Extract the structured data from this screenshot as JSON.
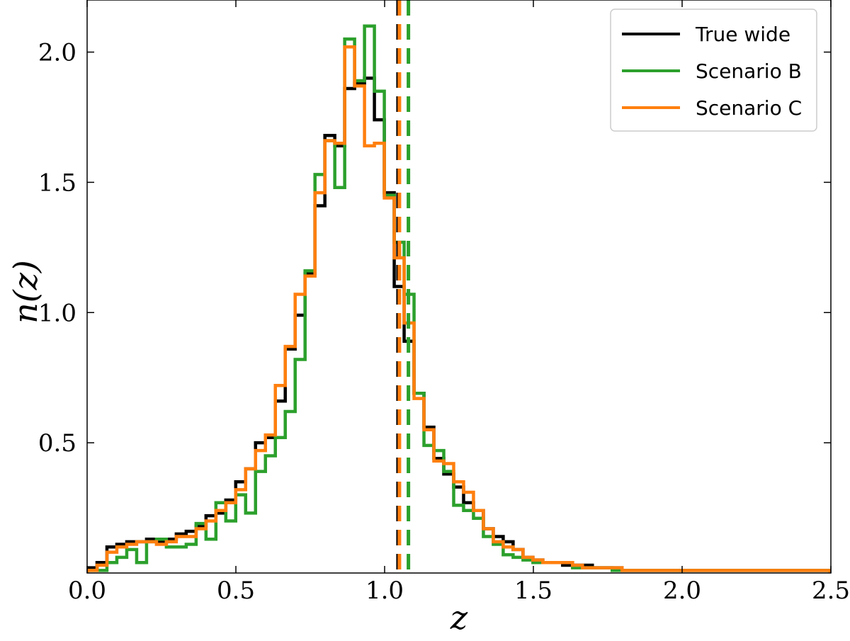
{
  "chart_data": {
    "type": "step-histogram",
    "xlabel": "z",
    "ylabel": "n(z)",
    "xlim": [
      0.0,
      2.5
    ],
    "ylim": [
      0.0,
      2.2
    ],
    "xticks": [
      "0.0",
      "0.5",
      "1.0",
      "1.5",
      "2.0",
      "2.5"
    ],
    "yticks": [
      "0.5",
      "1.0",
      "1.5",
      "2.0"
    ],
    "grid": false,
    "legend_position": "top-right",
    "bin_width": 0.0333,
    "series": [
      {
        "name": "True wide",
        "color": "#000000",
        "mean_z": 1.045,
        "values": [
          0.02,
          0.04,
          0.1,
          0.11,
          0.12,
          0.12,
          0.13,
          0.12,
          0.13,
          0.15,
          0.16,
          0.18,
          0.22,
          0.23,
          0.28,
          0.35,
          0.4,
          0.5,
          0.52,
          0.66,
          0.86,
          0.99,
          1.15,
          1.41,
          1.68,
          1.64,
          1.86,
          1.88,
          1.9,
          1.74,
          1.46,
          1.1,
          0.89,
          0.69,
          0.56,
          0.44,
          0.38,
          0.33,
          0.27,
          0.24,
          0.17,
          0.14,
          0.12,
          0.09,
          0.06,
          0.05,
          0.04,
          0.04,
          0.03,
          0.03,
          0.03,
          0.02,
          0.02,
          0.02,
          0.01,
          0.01,
          0.01,
          0.01,
          0.01,
          0.01,
          0.01,
          0.01,
          0.01,
          0.01,
          0.01,
          0.01,
          0.01,
          0.01,
          0.01,
          0.01,
          0.01,
          0.01,
          0.01,
          0.01,
          0.01
        ]
      },
      {
        "name": "Scenario B",
        "color": "#2ca02c",
        "mean_z": 1.08,
        "values": [
          0.01,
          0.01,
          0.04,
          0.06,
          0.09,
          0.04,
          0.12,
          0.13,
          0.1,
          0.1,
          0.11,
          0.19,
          0.13,
          0.27,
          0.2,
          0.3,
          0.23,
          0.39,
          0.45,
          0.52,
          0.62,
          0.82,
          1.16,
          1.53,
          1.66,
          1.48,
          2.05,
          1.89,
          2.1,
          1.85,
          1.45,
          1.27,
          1.07,
          0.69,
          0.49,
          0.47,
          0.39,
          0.26,
          0.24,
          0.21,
          0.14,
          0.11,
          0.07,
          0.06,
          0.05,
          0.04,
          0.04,
          0.04,
          0.04,
          0.02,
          0.02,
          0.02,
          0.02,
          0.01,
          0.01,
          0.01,
          0.01,
          0.01,
          0.01,
          0.01,
          0.01,
          0.01,
          0.01,
          0.01,
          0.01,
          0.01,
          0.01,
          0.01,
          0.01,
          0.01,
          0.01,
          0.01,
          0.01,
          0.01,
          0.01
        ]
      },
      {
        "name": "Scenario C",
        "color": "#ff7f0e",
        "mean_z": 1.045,
        "values": [
          0.01,
          0.03,
          0.08,
          0.1,
          0.11,
          0.12,
          0.12,
          0.11,
          0.12,
          0.14,
          0.14,
          0.17,
          0.2,
          0.24,
          0.27,
          0.32,
          0.4,
          0.47,
          0.53,
          0.72,
          0.87,
          1.07,
          1.14,
          1.46,
          1.66,
          1.65,
          2.02,
          1.87,
          1.64,
          1.65,
          1.44,
          1.21,
          0.96,
          0.67,
          0.55,
          0.43,
          0.42,
          0.35,
          0.31,
          0.24,
          0.17,
          0.12,
          0.1,
          0.09,
          0.06,
          0.05,
          0.04,
          0.04,
          0.04,
          0.03,
          0.02,
          0.02,
          0.02,
          0.02,
          0.01,
          0.01,
          0.01,
          0.01,
          0.01,
          0.01,
          0.01,
          0.01,
          0.01,
          0.01,
          0.01,
          0.01,
          0.01,
          0.01,
          0.01,
          0.01,
          0.01,
          0.01,
          0.01,
          0.01,
          0.01
        ]
      }
    ]
  }
}
